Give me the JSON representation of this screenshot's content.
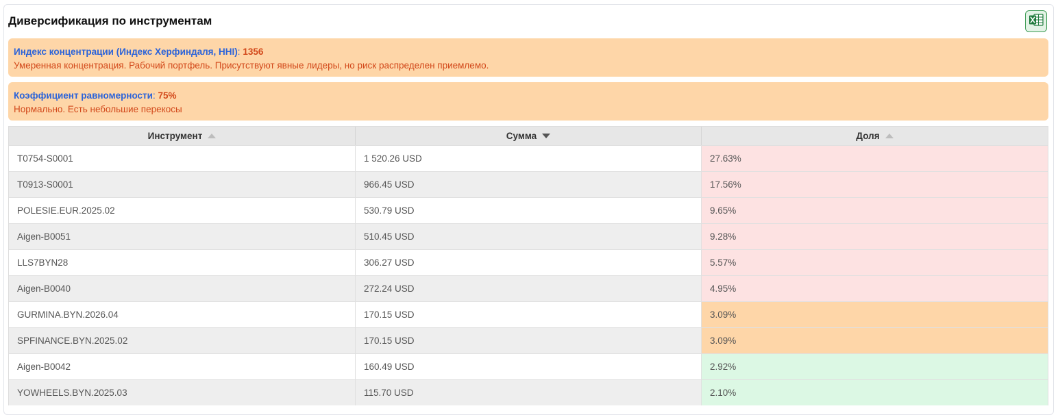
{
  "header": {
    "title": "Диверсификация по инструментам",
    "export_icon": "excel-icon"
  },
  "hhi": {
    "label": "Индекс концентрации (Индекс Херфиндаля, HHI)",
    "colon": ":",
    "value": "1356",
    "description": "Умеренная концентрация. Рабочий портфель. Присутствуют явные лидеры, но риск распределен приемлемо."
  },
  "evenness": {
    "label": "Коэффициент равномерности",
    "colon": ":",
    "value": "75%",
    "description": "Нормально. Есть небольшие перекосы"
  },
  "table": {
    "columns": [
      {
        "label": "Инструмент",
        "sort": "asc-inactive"
      },
      {
        "label": "Сумма",
        "sort": "desc-active"
      },
      {
        "label": "Доля",
        "sort": "asc-inactive"
      }
    ],
    "colors": {
      "high": "#fde2e2",
      "medium": "#fed6a8",
      "low": "#dcf8e4"
    },
    "rows": [
      {
        "instrument": "T0754-S0001",
        "amount": "1 520.26 USD",
        "share": "27.63%",
        "level": "high"
      },
      {
        "instrument": "T0913-S0001",
        "amount": "966.45 USD",
        "share": "17.56%",
        "level": "high"
      },
      {
        "instrument": "POLESIE.EUR.2025.02",
        "amount": "530.79 USD",
        "share": "9.65%",
        "level": "high"
      },
      {
        "instrument": "Aigen-B0051",
        "amount": "510.45 USD",
        "share": "9.28%",
        "level": "high"
      },
      {
        "instrument": "LLS7BYN28",
        "amount": "306.27 USD",
        "share": "5.57%",
        "level": "high"
      },
      {
        "instrument": "Aigen-B0040",
        "amount": "272.24 USD",
        "share": "4.95%",
        "level": "high"
      },
      {
        "instrument": "GURMINA.BYN.2026.04",
        "amount": "170.15 USD",
        "share": "3.09%",
        "level": "medium"
      },
      {
        "instrument": "SPFINANCE.BYN.2025.02",
        "amount": "170.15 USD",
        "share": "3.09%",
        "level": "medium"
      },
      {
        "instrument": "Aigen-B0042",
        "amount": "160.49 USD",
        "share": "2.92%",
        "level": "low"
      },
      {
        "instrument": "YOWHEELS.BYN.2025.03",
        "amount": "115.70 USD",
        "share": "2.10%",
        "level": "low"
      }
    ]
  }
}
